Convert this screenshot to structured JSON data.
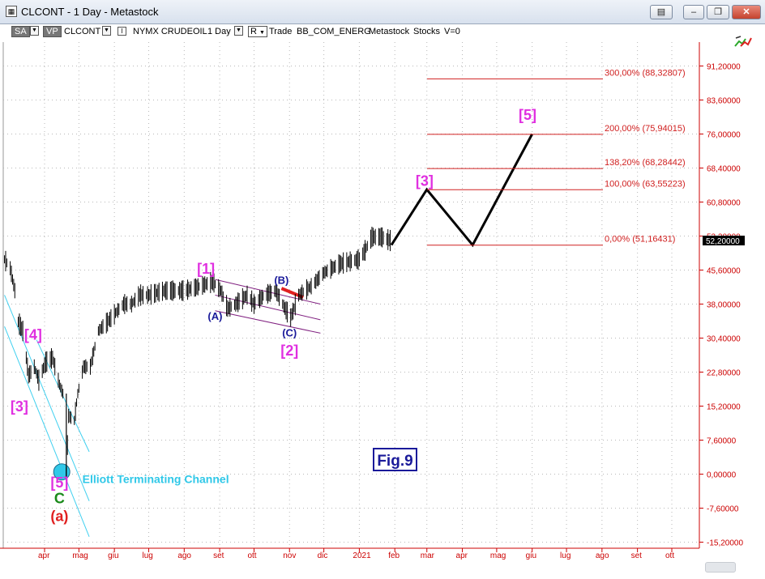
{
  "window": {
    "title": "CLCONT - 1 Day - Metastock",
    "buttons": {
      "help": "?",
      "minimize": "–",
      "restore": "❐",
      "close": "✕",
      "extra": "▤"
    }
  },
  "toolbar": {
    "sa": "SA",
    "vp": "VP",
    "symbol": "CLCONT",
    "exchange": "NYMX CRUDEOIL",
    "interval": "1 Day",
    "r": "R",
    "mode": "Trade",
    "datasource": "BB_COM_ENERG",
    "provider": "Metastock",
    "type": "Stocks",
    "v": "V=0"
  },
  "chart_data": {
    "type": "line",
    "title": "",
    "xlabel": "",
    "ylabel": "",
    "ylim": [
      -15.2,
      98
    ],
    "y_ticks": [
      "91,20000",
      "83,60000",
      "76,00000",
      "68,40000",
      "60,80000",
      "53,20000",
      "45,60000",
      "38,00000",
      "30,40000",
      "22,80000",
      "15,20000",
      "7,60000",
      "0,00000",
      "-7,60000",
      "-15,20000"
    ],
    "y_tick_values": [
      91.2,
      83.6,
      76.0,
      68.4,
      60.8,
      53.2,
      45.6,
      38.0,
      30.4,
      22.8,
      15.2,
      7.6,
      0.0,
      -7.6,
      -15.2
    ],
    "current_price_label": "52,20000",
    "current_price": 52.2,
    "x_ticks": [
      {
        "label": "apr",
        "x": "2020-04-01"
      },
      {
        "label": "mag",
        "x": "2020-05-01"
      },
      {
        "label": "giu",
        "x": "2020-06-01"
      },
      {
        "label": "lug",
        "x": "2020-07-01"
      },
      {
        "label": "ago",
        "x": "2020-08-01"
      },
      {
        "label": "set",
        "x": "2020-09-01"
      },
      {
        "label": "ott",
        "x": "2020-10-01"
      },
      {
        "label": "nov",
        "x": "2020-11-01"
      },
      {
        "label": "dic",
        "x": "2020-12-01"
      },
      {
        "label": "2021",
        "x": "2021-01-01"
      },
      {
        "label": "feb",
        "x": "2021-02-01"
      },
      {
        "label": "mar",
        "x": "2021-03-01"
      },
      {
        "label": "apr",
        "x": "2021-04-01"
      },
      {
        "label": "mag",
        "x": "2021-05-01"
      },
      {
        "label": "giu",
        "x": "2021-06-01"
      },
      {
        "label": "lug",
        "x": "2021-07-01"
      },
      {
        "label": "ago",
        "x": "2021-08-01"
      },
      {
        "label": "set",
        "x": "2021-09-01"
      },
      {
        "label": "ott",
        "x": "2021-10-01"
      }
    ],
    "price_series": [
      {
        "x": "2020-02-26",
        "y": 48
      },
      {
        "x": "2020-03-02",
        "y": 46
      },
      {
        "x": "2020-03-06",
        "y": 41
      },
      {
        "x": "2020-03-09",
        "y": 34
      },
      {
        "x": "2020-03-13",
        "y": 32
      },
      {
        "x": "2020-03-18",
        "y": 22
      },
      {
        "x": "2020-03-23",
        "y": 24
      },
      {
        "x": "2020-03-27",
        "y": 21
      },
      {
        "x": "2020-04-02",
        "y": 25
      },
      {
        "x": "2020-04-08",
        "y": 26
      },
      {
        "x": "2020-04-14",
        "y": 20
      },
      {
        "x": "2020-04-17",
        "y": 18
      },
      {
        "x": "2020-04-20",
        "y": 0
      },
      {
        "x": "2020-04-22",
        "y": 13
      },
      {
        "x": "2020-04-27",
        "y": 12
      },
      {
        "x": "2020-04-30",
        "y": 18
      },
      {
        "x": "2020-05-05",
        "y": 24
      },
      {
        "x": "2020-05-11",
        "y": 24
      },
      {
        "x": "2020-05-18",
        "y": 32
      },
      {
        "x": "2020-05-26",
        "y": 34
      },
      {
        "x": "2020-06-02",
        "y": 36
      },
      {
        "x": "2020-06-09",
        "y": 38
      },
      {
        "x": "2020-06-16",
        "y": 38
      },
      {
        "x": "2020-06-23",
        "y": 40
      },
      {
        "x": "2020-07-01",
        "y": 40
      },
      {
        "x": "2020-07-15",
        "y": 41
      },
      {
        "x": "2020-08-01",
        "y": 41
      },
      {
        "x": "2020-08-15",
        "y": 42
      },
      {
        "x": "2020-08-26",
        "y": 43
      },
      {
        "x": "2020-09-02",
        "y": 41
      },
      {
        "x": "2020-09-08",
        "y": 37
      },
      {
        "x": "2020-09-15",
        "y": 38
      },
      {
        "x": "2020-09-25",
        "y": 40
      },
      {
        "x": "2020-10-01",
        "y": 38
      },
      {
        "x": "2020-10-10",
        "y": 40
      },
      {
        "x": "2020-10-20",
        "y": 41
      },
      {
        "x": "2020-10-28",
        "y": 37
      },
      {
        "x": "2020-11-02",
        "y": 35
      },
      {
        "x": "2020-11-09",
        "y": 40
      },
      {
        "x": "2020-11-20",
        "y": 42
      },
      {
        "x": "2020-12-01",
        "y": 45
      },
      {
        "x": "2020-12-15",
        "y": 47
      },
      {
        "x": "2021-01-01",
        "y": 48
      },
      {
        "x": "2021-01-06",
        "y": 50
      },
      {
        "x": "2021-01-12",
        "y": 53
      },
      {
        "x": "2021-01-20",
        "y": 53
      },
      {
        "x": "2021-01-28",
        "y": 52.2
      }
    ],
    "projection": [
      {
        "x": "2021-01-29",
        "y": 51.2
      },
      {
        "x": "2021-03-01",
        "y": 63.6
      },
      {
        "x": "2021-04-10",
        "y": 51.2
      },
      {
        "x": "2021-06-01",
        "y": 76.0
      }
    ],
    "fibonacci_levels": [
      {
        "label": "300,00% (88,32807)",
        "value": 88.32807
      },
      {
        "label": "200,00% (75,94015)",
        "value": 75.94015
      },
      {
        "label": "138,20% (68,28442)",
        "value": 68.28442
      },
      {
        "label": "100,00% (63,55223)",
        "value": 63.55223
      },
      {
        "label": "0,00% (51,16431)",
        "value": 51.16431
      }
    ],
    "annotations": [
      {
        "text": "[4]",
        "x": "2020-03-22",
        "y": 30,
        "color": "#e030e0"
      },
      {
        "text": "[3]",
        "x": "2020-03-10",
        "y": 14,
        "color": "#e030e0"
      },
      {
        "text": "[5]",
        "x": "2020-04-14",
        "y": -3,
        "color": "#e030e0"
      },
      {
        "text": "C",
        "x": "2020-04-14",
        "y": -6.5,
        "color": "#1a8a1a"
      },
      {
        "text": "(a)",
        "x": "2020-04-14",
        "y": -10.5,
        "color": "#e02020"
      },
      {
        "text": "Elliott Terminating Channel",
        "x": "2020-05-04",
        "y": -2,
        "color": "#30c8e8"
      },
      {
        "text": "[1]",
        "x": "2020-08-20",
        "y": 44.8,
        "color": "#e030e0"
      },
      {
        "text": "(A)",
        "x": "2020-08-28",
        "y": 34.5,
        "color": "#1a1a9a"
      },
      {
        "text": "(B)",
        "x": "2020-10-25",
        "y": 42.5,
        "color": "#1a1a9a"
      },
      {
        "text": "(C)",
        "x": "2020-11-01",
        "y": 30.8,
        "color": "#1a1a9a"
      },
      {
        "text": "[2]",
        "x": "2020-11-01",
        "y": 26.5,
        "color": "#e030e0"
      },
      {
        "text": "[3]",
        "x": "2021-02-27",
        "y": 64.4,
        "color": "#e030e0"
      },
      {
        "text": "[5]",
        "x": "2021-05-28",
        "y": 79.2,
        "color": "#e030e0"
      }
    ],
    "figure_label": "Fig.9"
  }
}
